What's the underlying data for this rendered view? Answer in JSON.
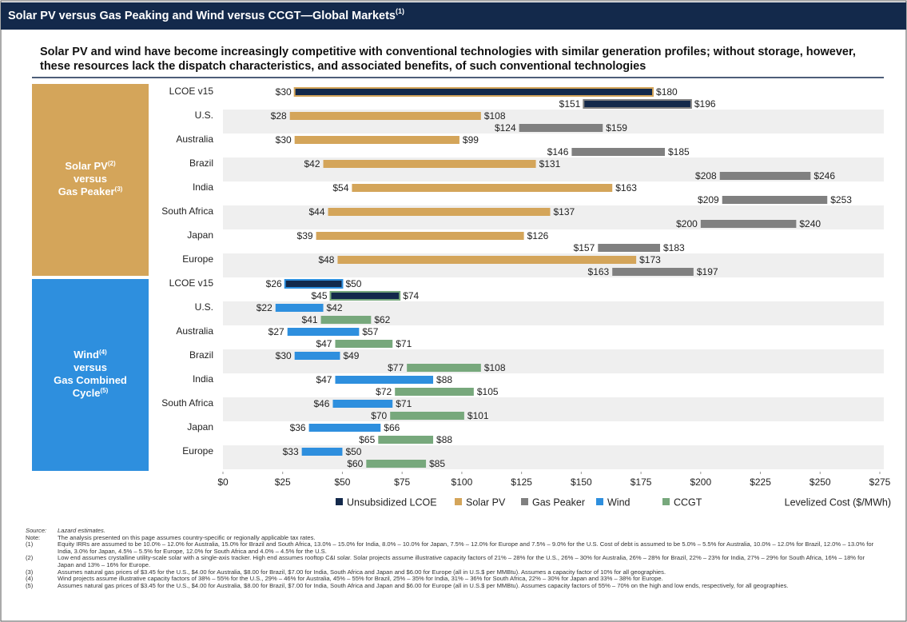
{
  "header": {
    "title": "Solar PV versus Gas Peaking and Wind versus CCGT—Global Markets",
    "title_note": "(1)"
  },
  "subtitle": "Solar PV and wind have become increasingly competitive with conventional technologies with similar generation profiles; without storage, however, these resources lack the dispatch characteristics, and associated benefits, of such conventional technologies",
  "chart_data": {
    "type": "floating-bar",
    "x_label": "Levelized Cost ($/MWh)",
    "xlim": [
      0,
      275
    ],
    "xticks": [
      {
        "value": 0,
        "label": "$0"
      },
      {
        "value": 25,
        "label": "$25"
      },
      {
        "value": 50,
        "label": "$50"
      },
      {
        "value": 75,
        "label": "$75"
      },
      {
        "value": 100,
        "label": "$100"
      },
      {
        "value": 125,
        "label": "$125"
      },
      {
        "value": 150,
        "label": "$150"
      },
      {
        "value": 175,
        "label": "$175"
      },
      {
        "value": 200,
        "label": "$200"
      },
      {
        "value": 225,
        "label": "$225"
      },
      {
        "value": 250,
        "label": "$250"
      },
      {
        "value": 275,
        "label": "$275"
      }
    ],
    "highlight": {
      "name": "Unsubsidized LCOE",
      "color": "#13294b"
    },
    "groups": [
      {
        "label_lines": [
          {
            "text": "Solar PV",
            "note": "(2)"
          },
          {
            "text": "versus"
          },
          {
            "text": "Gas Peaker",
            "note": "(3)"
          }
        ],
        "color": "#d4a55a",
        "categories": [
          "LCOE v15",
          "U.S.",
          "Australia",
          "Brazil",
          "India",
          "South Africa",
          "Japan",
          "Europe"
        ],
        "series": [
          {
            "name": "Solar PV",
            "color": "#d4a55a",
            "low": [
              30,
              28,
              30,
              42,
              54,
              44,
              39,
              48
            ],
            "high": [
              180,
              108,
              99,
              131,
              163,
              137,
              126,
              173
            ],
            "low_labels": [
              "$30",
              "$28",
              "$30",
              "$42",
              "$54",
              "$44",
              "$39",
              "$48"
            ],
            "high_labels": [
              "$180",
              "$108",
              "$99",
              "$131",
              "$163",
              "$137",
              "$126",
              "$173"
            ]
          },
          {
            "name": "Gas Peaker",
            "color": "#808080",
            "low": [
              151,
              124,
              146,
              208,
              209,
              200,
              157,
              163
            ],
            "high": [
              196,
              159,
              185,
              246,
              253,
              240,
              183,
              197
            ],
            "low_labels": [
              "$151",
              "$124",
              "$146",
              "$208",
              "$209",
              "$200",
              "$157",
              "$163"
            ],
            "high_labels": [
              "$196",
              "$159",
              "$185",
              "$246",
              "$253",
              "$240",
              "$183",
              "$197"
            ]
          }
        ]
      },
      {
        "label_lines": [
          {
            "text": "Wind",
            "note": "(4)"
          },
          {
            "text": "versus"
          },
          {
            "text": "Gas Combined"
          },
          {
            "text": "Cycle",
            "note": "(5)"
          }
        ],
        "color": "#2e8fde",
        "categories": [
          "LCOE v15",
          "U.S.",
          "Australia",
          "Brazil",
          "India",
          "South Africa",
          "Japan",
          "Europe"
        ],
        "series": [
          {
            "name": "Wind",
            "color": "#2e8fde",
            "low": [
              26,
              22,
              27,
              30,
              47,
              46,
              36,
              33
            ],
            "high": [
              50,
              42,
              57,
              49,
              88,
              71,
              66,
              50
            ],
            "low_labels": [
              "$26",
              "$22",
              "$27",
              "$30",
              "$47",
              "$46",
              "$36",
              "$33"
            ],
            "high_labels": [
              "$50",
              "$42",
              "$57",
              "$49",
              "$88",
              "$71",
              "$66",
              "$50"
            ]
          },
          {
            "name": "CCGT",
            "color": "#77a87c",
            "low": [
              45,
              41,
              47,
              77,
              72,
              70,
              65,
              60
            ],
            "high": [
              74,
              62,
              71,
              108,
              105,
              101,
              88,
              85
            ],
            "low_labels": [
              "$45",
              "$41",
              "$47",
              "$77",
              "$72",
              "$70",
              "$65",
              "$60"
            ],
            "high_labels": [
              "$74",
              "$62",
              "$71",
              "$108",
              "$105",
              "$101",
              "$88",
              "$85"
            ]
          }
        ]
      }
    ]
  },
  "footnotes": [
    {
      "label": "Source:",
      "text": "Lazard estimates."
    },
    {
      "label": "Note:",
      "text": "The analysis presented on this page assumes country-specific or regionally applicable tax rates."
    },
    {
      "label": "(1)",
      "text": "Equity IRRs are assumed to be 10.0% – 12.0% for Australia, 15.0% for Brazil and South Africa, 13.0% – 15.0% for India, 8.0% – 10.0% for Japan, 7.5% – 12.0% for Europe and 7.5% – 9.0% for the U.S. Cost of debt is assumed to be 5.0% – 5.5% for Australia, 10.0% – 12.0% for Brazil, 12.0% – 13.0% for India, 3.0% for Japan, 4.5% – 5.5% for Europe, 12.0% for South Africa and 4.0% – 4.5% for the U.S."
    },
    {
      "label": "(2)",
      "text": "Low end assumes crystalline utility-scale solar with a single-axis tracker. High end assumes rooftop C&I solar. Solar projects assume illustrative capacity factors of 21% – 28% for the U.S., 26% – 30% for Australia, 26% – 28% for Brazil, 22% – 23% for India, 27% – 29% for South Africa, 16% – 18% for Japan and 13% – 16% for Europe."
    },
    {
      "label": "(3)",
      "text": "Assumes natural gas prices of $3.45 for the U.S., $4.00 for Australia, $8.00 for Brazil, $7.00 for India, South Africa and Japan and $6.00 for Europe (all in U.S.$ per MMBtu). Assumes a capacity factor of 10% for all geographies."
    },
    {
      "label": "(4)",
      "text": "Wind projects assume illustrative capacity factors of 38% – 55% for the U.S., 29% – 46% for Australia, 45% – 55% for Brazil, 25% – 35% for India, 31% – 36% for South Africa, 22% – 30% for Japan and 33% – 38% for Europe."
    },
    {
      "label": "(5)",
      "text": "Assumes natural gas prices of $3.45 for the U.S., $4.00 for Australia, $8.00 for Brazil, $7.00 for India, South Africa and Japan and $6.00 for Europe (all in U.S.$ per MMBtu). Assumes capacity factors of 55% – 70% on the high and low ends, respectively, for all geographies."
    }
  ]
}
